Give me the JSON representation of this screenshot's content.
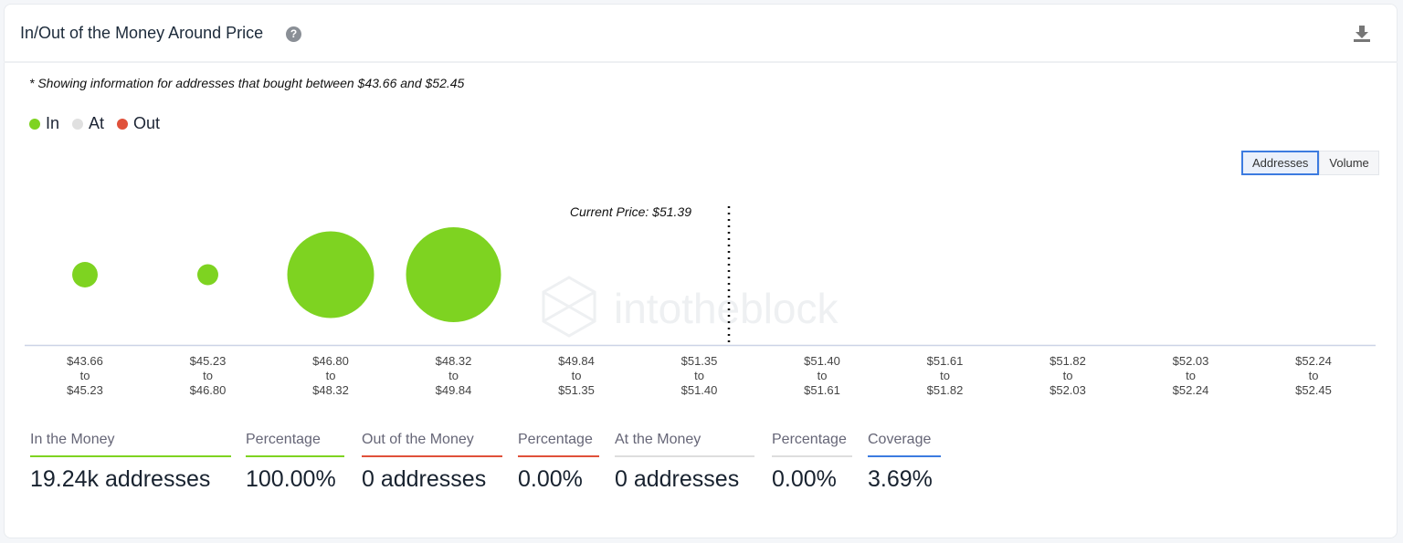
{
  "header": {
    "title": "In/Out of the Money Around Price",
    "help_icon": "question-circle-icon",
    "download_icon": "download-icon"
  },
  "note": "* Showing information for addresses that bought between $43.66 and $52.45",
  "legend": [
    {
      "label": "In",
      "color": "#7ed321"
    },
    {
      "label": "At",
      "color": "#e0e0e0"
    },
    {
      "label": "Out",
      "color": "#e0513a"
    }
  ],
  "toggle": {
    "addresses": "Addresses",
    "volume": "Volume",
    "selected": "Addresses"
  },
  "watermark": "intotheblock",
  "chart_data": {
    "type": "scatter",
    "subtype": "bubble",
    "current_price_label": "Current Price: $51.39",
    "current_price": 51.39,
    "categories": [
      {
        "from": "$43.66",
        "to": "$45.23"
      },
      {
        "from": "$45.23",
        "to": "$46.80"
      },
      {
        "from": "$46.80",
        "to": "$48.32"
      },
      {
        "from": "$48.32",
        "to": "$49.84"
      },
      {
        "from": "$49.84",
        "to": "$51.35"
      },
      {
        "from": "$51.35",
        "to": "$51.40"
      },
      {
        "from": "$51.40",
        "to": "$51.61"
      },
      {
        "from": "$51.61",
        "to": "$51.82"
      },
      {
        "from": "$51.82",
        "to": "$52.03"
      },
      {
        "from": "$52.03",
        "to": "$52.24"
      },
      {
        "from": "$52.24",
        "to": "$52.45"
      }
    ],
    "to_word": "to",
    "series": [
      {
        "name": "In",
        "values": [
          0.71,
          0.48,
          8.21,
          9.84,
          0,
          0,
          0,
          0,
          0,
          0,
          0
        ]
      }
    ],
    "value_unit": "k addresses (approx.)",
    "grid": false
  },
  "stats": [
    {
      "label": "In the Money",
      "value": "19.24k addresses",
      "color": "#7ed321"
    },
    {
      "label": "Percentage",
      "value": "100.00%",
      "color": "#7ed321"
    },
    {
      "label": "Out of the Money",
      "value": "0 addresses",
      "color": "#e0513a"
    },
    {
      "label": "Percentage",
      "value": "0.00%",
      "color": "#e0513a"
    },
    {
      "label": "At the Money",
      "value": "0 addresses",
      "color": "#dddddd"
    },
    {
      "label": "Percentage",
      "value": "0.00%",
      "color": "#dddddd"
    },
    {
      "label": "Coverage",
      "value": "3.69%",
      "color": "#3c7be0"
    }
  ]
}
